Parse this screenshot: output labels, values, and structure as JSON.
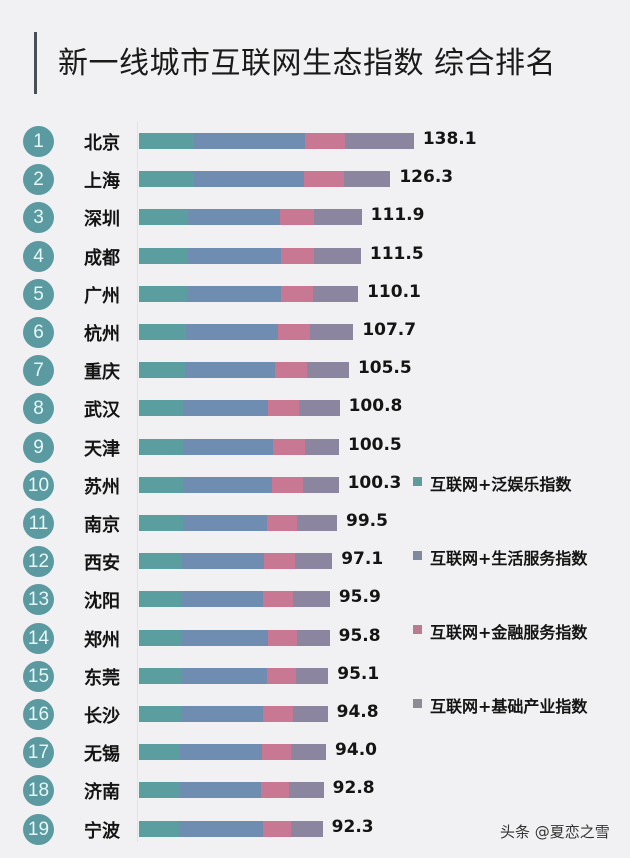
{
  "title": "新一线城市互联网生态指数 综合排名",
  "watermark": "头条 @夏恋之雪",
  "colors": {
    "entertainment": "#5a9ea0",
    "life_service": "#6f8db0",
    "finance": "#c97893",
    "industry": "#8c85a0",
    "rank_circle": "#5a9aa0"
  },
  "legend": [
    {
      "label": "互联网+泛娱乐指数",
      "color": "#5f9a9c"
    },
    {
      "label": "互联网+生活服务指数",
      "color": "#7f8a9e"
    },
    {
      "label": "互联网+金融服务指数",
      "color": "#b87c90"
    },
    {
      "label": "互联网+基础产业指数",
      "color": "#8d8b95"
    }
  ],
  "chart_data": {
    "type": "bar",
    "orientation": "horizontal",
    "stacked": true,
    "title": "新一线城市互联网生态指数 综合排名",
    "xlabel": "",
    "ylabel": "",
    "grid": false,
    "legend_position": "right",
    "categories": [
      "北京",
      "上海",
      "深圳",
      "成都",
      "广州",
      "杭州",
      "重庆",
      "武汉",
      "天津",
      "苏州",
      "南京",
      "西安",
      "沈阳",
      "郑州",
      "东莞",
      "长沙",
      "无锡",
      "济南",
      "宁波"
    ],
    "ranks": [
      1,
      2,
      3,
      4,
      5,
      6,
      7,
      8,
      9,
      10,
      11,
      12,
      13,
      14,
      15,
      16,
      17,
      18,
      19
    ],
    "totals": [
      138.1,
      126.3,
      111.9,
      111.5,
      110.1,
      107.7,
      105.5,
      100.8,
      100.5,
      100.3,
      99.5,
      97.1,
      95.9,
      95.8,
      95.1,
      94.8,
      94.0,
      92.8,
      92.3
    ],
    "series": [
      {
        "name": "互联网+泛娱乐指数",
        "values": [
          27.6,
          27.5,
          24.6,
          24.7,
          24.2,
          23.7,
          23.2,
          22.2,
          22.1,
          22.1,
          21.9,
          21.4,
          21.1,
          21.1,
          20.9,
          20.9,
          20.7,
          20.4,
          20.3
        ]
      },
      {
        "name": "互联网+生活服务指数",
        "values": [
          55.8,
          55.6,
          46.5,
          46.9,
          47.0,
          46.1,
          45.3,
          42.8,
          45.2,
          44.6,
          42.3,
          41.6,
          41.1,
          43.6,
          43.4,
          41.6,
          41.1,
          40.8,
          42.2
        ]
      },
      {
        "name": "互联网+金融服务指数",
        "values": [
          20.1,
          19.8,
          16.6,
          16.5,
          16.3,
          16.0,
          15.7,
          15.5,
          16.0,
          15.6,
          15.2,
          15.3,
          15.0,
          14.8,
          14.6,
          14.9,
          14.8,
          14.4,
          13.8
        ]
      },
      {
        "name": "互联网+基础产业指数",
        "values": [
          34.6,
          23.4,
          24.2,
          23.4,
          22.6,
          21.9,
          21.3,
          20.3,
          17.2,
          18.0,
          20.1,
          18.8,
          18.7,
          16.3,
          16.2,
          17.4,
          17.4,
          17.2,
          16.0
        ]
      }
    ]
  },
  "rows": [
    {
      "rank": "1",
      "city": "北京",
      "value": "138.1"
    },
    {
      "rank": "2",
      "city": "上海",
      "value": "126.3"
    },
    {
      "rank": "3",
      "city": "深圳",
      "value": "111.9"
    },
    {
      "rank": "4",
      "city": "成都",
      "value": "111.5"
    },
    {
      "rank": "5",
      "city": "广州",
      "value": "110.1"
    },
    {
      "rank": "6",
      "city": "杭州",
      "value": "107.7"
    },
    {
      "rank": "7",
      "city": "重庆",
      "value": "105.5"
    },
    {
      "rank": "8",
      "city": "武汉",
      "value": "100.8"
    },
    {
      "rank": "9",
      "city": "天津",
      "value": "100.5"
    },
    {
      "rank": "10",
      "city": "苏州",
      "value": "100.3"
    },
    {
      "rank": "11",
      "city": "南京",
      "value": "99.5"
    },
    {
      "rank": "12",
      "city": "西安",
      "value": "97.1"
    },
    {
      "rank": "13",
      "city": "沈阳",
      "value": "95.9"
    },
    {
      "rank": "14",
      "city": "郑州",
      "value": "95.8"
    },
    {
      "rank": "15",
      "city": "东莞",
      "value": "95.1"
    },
    {
      "rank": "16",
      "city": "长沙",
      "value": "94.8"
    },
    {
      "rank": "17",
      "city": "无锡",
      "value": "94.0"
    },
    {
      "rank": "18",
      "city": "济南",
      "value": "92.8"
    },
    {
      "rank": "19",
      "city": "宁波",
      "value": "92.3"
    }
  ]
}
